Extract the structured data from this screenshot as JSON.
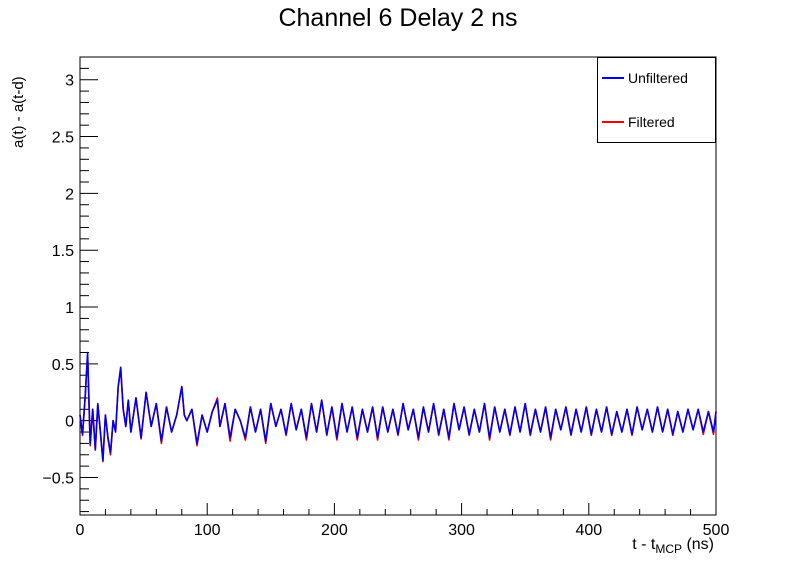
{
  "chart_data": {
    "type": "line",
    "title": "Channel 6 Delay 2 ns",
    "ylabel": "a(t) - a(t-d)",
    "xlabel_main": "t - t",
    "xlabel_sub": "MCP",
    "xlabel_unit": " (ns)",
    "xlim": [
      0,
      500
    ],
    "ylim": [
      -0.83,
      3.2
    ],
    "x_ticks": [
      0,
      100,
      200,
      300,
      400,
      500
    ],
    "x_tick_labels": [
      "0",
      "100",
      "200",
      "300",
      "400",
      "500"
    ],
    "y_ticks": [
      -0.5,
      0,
      0.5,
      1,
      1.5,
      2,
      2.5,
      3
    ],
    "y_tick_labels": [
      "−0.5",
      "0",
      "0.5",
      "1",
      "1.5",
      "2",
      "2.5",
      "3"
    ],
    "legend_position": "top-right",
    "grid": false,
    "series": [
      {
        "name": "Unfiltered",
        "color": "#0000ee",
        "x": [
          0,
          2,
          4,
          6,
          8,
          10,
          12,
          14,
          16,
          18,
          20,
          22,
          24,
          26,
          28,
          30,
          32,
          34,
          36,
          38,
          40,
          44,
          48,
          52,
          56,
          60,
          64,
          68,
          72,
          76,
          80,
          82,
          84,
          88,
          92,
          96,
          100,
          104,
          108,
          110,
          114,
          118,
          122,
          126,
          130,
          134,
          138,
          142,
          146,
          150,
          154,
          158,
          162,
          166,
          170,
          174,
          178,
          182,
          186,
          190,
          194,
          198,
          202,
          206,
          210,
          214,
          218,
          222,
          226,
          230,
          234,
          238,
          242,
          246,
          250,
          254,
          258,
          262,
          266,
          270,
          274,
          278,
          282,
          286,
          290,
          294,
          298,
          302,
          306,
          310,
          314,
          318,
          322,
          326,
          330,
          334,
          338,
          342,
          346,
          350,
          354,
          358,
          362,
          366,
          370,
          374,
          378,
          382,
          386,
          390,
          394,
          398,
          402,
          406,
          410,
          414,
          418,
          422,
          426,
          430,
          434,
          438,
          442,
          446,
          450,
          454,
          458,
          462,
          466,
          470,
          474,
          478,
          482,
          486,
          490,
          494,
          498,
          500
        ],
        "y": [
          0.05,
          -0.12,
          0.2,
          0.6,
          -0.2,
          0.1,
          -0.25,
          0.15,
          -0.1,
          -0.35,
          0.05,
          -0.15,
          -0.28,
          0.0,
          -0.1,
          0.3,
          0.47,
          0.1,
          -0.05,
          0.18,
          -0.1,
          0.2,
          -0.15,
          0.25,
          -0.05,
          0.15,
          -0.18,
          0.12,
          -0.1,
          0.05,
          0.3,
          0.05,
          0.0,
          0.1,
          -0.2,
          0.05,
          -0.1,
          0.08,
          0.18,
          -0.05,
          0.15,
          -0.15,
          0.1,
          0.0,
          -0.15,
          0.12,
          -0.1,
          0.1,
          -0.18,
          0.15,
          -0.05,
          0.1,
          -0.12,
          0.15,
          -0.08,
          0.1,
          -0.15,
          0.15,
          -0.1,
          0.18,
          -0.12,
          0.12,
          -0.15,
          0.15,
          -0.1,
          0.12,
          -0.15,
          0.1,
          -0.1,
          0.12,
          -0.15,
          0.12,
          -0.1,
          0.1,
          -0.12,
          0.15,
          -0.08,
          0.1,
          -0.15,
          0.12,
          -0.1,
          0.15,
          -0.12,
          0.1,
          -0.15,
          0.15,
          -0.08,
          0.12,
          -0.12,
          0.1,
          -0.1,
          0.15,
          -0.15,
          0.12,
          -0.1,
          0.1,
          -0.12,
          0.12,
          -0.1,
          0.15,
          -0.12,
          0.1,
          -0.1,
          0.12,
          -0.15,
          0.1,
          -0.08,
          0.12,
          -0.12,
          0.1,
          -0.1,
          0.12,
          -0.12,
          0.1,
          -0.1,
          0.12,
          -0.12,
          0.08,
          -0.1,
          0.1,
          -0.12,
          0.12,
          -0.08,
          0.1,
          -0.1,
          0.12,
          -0.1,
          0.1,
          -0.12,
          0.08,
          -0.1,
          0.1,
          -0.08,
          0.1,
          -0.1,
          0.08,
          -0.1,
          0.08
        ]
      },
      {
        "name": "Filtered",
        "color": "#ee0000",
        "x": [
          0,
          2,
          4,
          6,
          8,
          10,
          12,
          14,
          16,
          18,
          20,
          22,
          24,
          26,
          28,
          30,
          32,
          34,
          36,
          38,
          40,
          44,
          48,
          52,
          56,
          60,
          64,
          68,
          72,
          76,
          80,
          82,
          84,
          88,
          92,
          96,
          100,
          104,
          108,
          110,
          114,
          118,
          122,
          126,
          130,
          134,
          138,
          142,
          146,
          150,
          154,
          158,
          162,
          166,
          170,
          174,
          178,
          182,
          186,
          190,
          194,
          198,
          202,
          206,
          210,
          214,
          218,
          222,
          226,
          230,
          234,
          238,
          242,
          246,
          250,
          254,
          258,
          262,
          266,
          270,
          274,
          278,
          282,
          286,
          290,
          294,
          298,
          302,
          306,
          310,
          314,
          318,
          322,
          326,
          330,
          334,
          338,
          342,
          346,
          350,
          354,
          358,
          362,
          366,
          370,
          374,
          378,
          382,
          386,
          390,
          394,
          398,
          402,
          406,
          410,
          414,
          418,
          422,
          426,
          430,
          434,
          438,
          442,
          446,
          450,
          454,
          458,
          462,
          466,
          470,
          474,
          478,
          482,
          486,
          490,
          494,
          498,
          500
        ],
        "y": [
          0.05,
          -0.13,
          0.2,
          0.58,
          -0.22,
          0.1,
          -0.26,
          0.14,
          -0.1,
          -0.36,
          0.05,
          -0.16,
          -0.3,
          0.0,
          -0.1,
          0.3,
          0.46,
          0.1,
          -0.05,
          0.18,
          -0.1,
          0.2,
          -0.16,
          0.25,
          -0.05,
          0.15,
          -0.2,
          0.12,
          -0.1,
          0.05,
          0.3,
          0.05,
          0.0,
          0.1,
          -0.22,
          0.05,
          -0.1,
          0.08,
          0.2,
          -0.05,
          0.15,
          -0.18,
          0.1,
          0.0,
          -0.17,
          0.12,
          -0.1,
          0.1,
          -0.2,
          0.15,
          -0.05,
          0.1,
          -0.13,
          0.15,
          -0.08,
          0.1,
          -0.17,
          0.15,
          -0.1,
          0.18,
          -0.13,
          0.12,
          -0.17,
          0.15,
          -0.1,
          0.12,
          -0.17,
          0.1,
          -0.1,
          0.12,
          -0.17,
          0.12,
          -0.1,
          0.1,
          -0.13,
          0.15,
          -0.08,
          0.1,
          -0.17,
          0.12,
          -0.1,
          0.15,
          -0.13,
          0.1,
          -0.17,
          0.15,
          -0.08,
          0.12,
          -0.13,
          0.1,
          -0.1,
          0.15,
          -0.17,
          0.12,
          -0.1,
          0.1,
          -0.13,
          0.12,
          -0.1,
          0.15,
          -0.13,
          0.1,
          -0.1,
          0.12,
          -0.17,
          0.1,
          -0.08,
          0.12,
          -0.13,
          0.1,
          -0.1,
          0.12,
          -0.13,
          0.1,
          -0.1,
          0.12,
          -0.13,
          0.08,
          -0.1,
          0.1,
          -0.13,
          0.12,
          -0.08,
          0.1,
          -0.1,
          0.12,
          -0.1,
          0.1,
          -0.13,
          0.08,
          -0.1,
          0.1,
          -0.08,
          0.1,
          -0.12,
          0.08,
          -0.12,
          0.08
        ]
      }
    ]
  }
}
